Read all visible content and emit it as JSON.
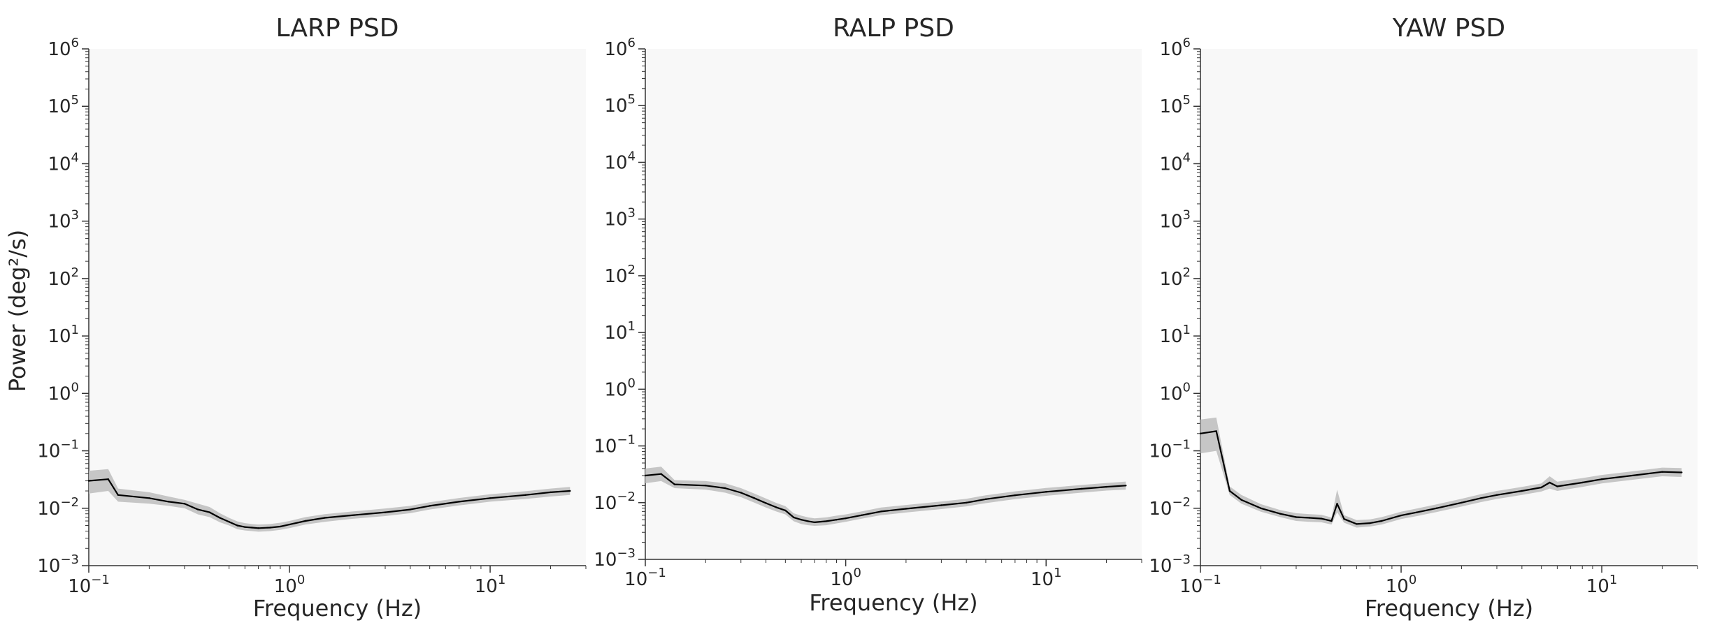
{
  "figure": {
    "shared_ylabel": "Power (deg²/s)"
  },
  "chart_data": [
    {
      "type": "line",
      "title": "LARP PSD",
      "xlabel": "Frequency (Hz)",
      "ylabel": "Power (deg²/s)",
      "xscale": "log",
      "yscale": "log",
      "xlim": [
        0.1,
        30
      ],
      "ylim": [
        0.001,
        1000000
      ],
      "xticks": [
        0.1,
        1,
        10
      ],
      "yticks": [
        0.001,
        0.01,
        0.1,
        1,
        10,
        100,
        1000,
        10000,
        100000,
        1000000
      ],
      "grid": false,
      "series": [
        {
          "style": "mean with shaded band",
          "line_color": "#000000",
          "band_color": "#bdbdbd",
          "x": [
            0.1,
            0.125,
            0.14,
            0.2,
            0.25,
            0.3,
            0.35,
            0.4,
            0.45,
            0.5,
            0.55,
            0.6,
            0.65,
            0.7,
            0.8,
            0.9,
            1.0,
            1.2,
            1.5,
            2.0,
            3.0,
            4.0,
            5.0,
            7.0,
            10.0,
            15.0,
            20.0,
            25.0
          ],
          "y": [
            0.03,
            0.032,
            0.017,
            0.015,
            0.013,
            0.012,
            0.0095,
            0.0085,
            0.0068,
            0.0058,
            0.005,
            0.0047,
            0.0046,
            0.0045,
            0.0046,
            0.0048,
            0.0052,
            0.006,
            0.0068,
            0.0075,
            0.0085,
            0.0095,
            0.011,
            0.013,
            0.015,
            0.017,
            0.019,
            0.02
          ],
          "lower": [
            0.018,
            0.02,
            0.013,
            0.012,
            0.011,
            0.01,
            0.0078,
            0.007,
            0.0057,
            0.005,
            0.0043,
            0.0041,
            0.004,
            0.0039,
            0.004,
            0.0042,
            0.0045,
            0.0052,
            0.0058,
            0.0065,
            0.0073,
            0.0082,
            0.0095,
            0.0112,
            0.013,
            0.0145,
            0.016,
            0.017
          ],
          "upper": [
            0.045,
            0.048,
            0.022,
            0.019,
            0.016,
            0.014,
            0.012,
            0.0105,
            0.0082,
            0.0068,
            0.0059,
            0.0055,
            0.0053,
            0.0052,
            0.0053,
            0.0056,
            0.006,
            0.007,
            0.0079,
            0.0087,
            0.0099,
            0.011,
            0.0127,
            0.0151,
            0.0175,
            0.0198,
            0.022,
            0.0235
          ]
        }
      ]
    },
    {
      "type": "line",
      "title": "RALP PSD",
      "xlabel": "Frequency (Hz)",
      "ylabel": "",
      "xscale": "log",
      "yscale": "log",
      "xlim": [
        0.1,
        30
      ],
      "ylim": [
        0.001,
        1000000
      ],
      "xticks": [
        0.1,
        1,
        10
      ],
      "yticks": [
        0.001,
        0.01,
        0.1,
        1,
        10,
        100,
        1000,
        10000,
        100000,
        1000000
      ],
      "grid": false,
      "series": [
        {
          "style": "mean with shaded band",
          "line_color": "#000000",
          "band_color": "#bdbdbd",
          "x": [
            0.1,
            0.12,
            0.14,
            0.2,
            0.25,
            0.3,
            0.35,
            0.4,
            0.45,
            0.5,
            0.55,
            0.6,
            0.65,
            0.7,
            0.8,
            0.9,
            1.0,
            1.2,
            1.5,
            2.0,
            3.0,
            4.0,
            5.0,
            7.0,
            10.0,
            15.0,
            20.0,
            25.0
          ],
          "y": [
            0.03,
            0.032,
            0.021,
            0.02,
            0.018,
            0.015,
            0.012,
            0.0098,
            0.0083,
            0.0073,
            0.0055,
            0.005,
            0.0047,
            0.0045,
            0.0047,
            0.005,
            0.0053,
            0.006,
            0.007,
            0.0078,
            0.009,
            0.01,
            0.0115,
            0.0135,
            0.0155,
            0.0175,
            0.019,
            0.02
          ],
          "lower": [
            0.022,
            0.024,
            0.018,
            0.017,
            0.015,
            0.0125,
            0.01,
            0.0082,
            0.007,
            0.0062,
            0.0047,
            0.0042,
            0.004,
            0.0039,
            0.004,
            0.0043,
            0.0046,
            0.0052,
            0.006,
            0.0067,
            0.0077,
            0.0086,
            0.0098,
            0.0115,
            0.0132,
            0.015,
            0.0163,
            0.017
          ],
          "upper": [
            0.04,
            0.043,
            0.025,
            0.024,
            0.022,
            0.018,
            0.0145,
            0.0118,
            0.0099,
            0.0087,
            0.0065,
            0.0059,
            0.0055,
            0.0053,
            0.0055,
            0.0059,
            0.0062,
            0.007,
            0.0082,
            0.0091,
            0.0105,
            0.0117,
            0.0135,
            0.0158,
            0.0181,
            0.0205,
            0.0222,
            0.0235
          ]
        }
      ]
    },
    {
      "type": "line",
      "title": "YAW PSD",
      "xlabel": "Frequency (Hz)",
      "ylabel": "",
      "xscale": "log",
      "yscale": "log",
      "xlim": [
        0.1,
        30
      ],
      "ylim": [
        0.001,
        1000000
      ],
      "xticks": [
        0.1,
        1,
        10
      ],
      "yticks": [
        0.001,
        0.01,
        0.1,
        1,
        10,
        100,
        1000,
        10000,
        100000,
        1000000
      ],
      "grid": false,
      "series": [
        {
          "style": "mean with shaded band",
          "line_color": "#000000",
          "band_color": "#bdbdbd",
          "x": [
            0.1,
            0.12,
            0.14,
            0.16,
            0.2,
            0.25,
            0.3,
            0.35,
            0.4,
            0.45,
            0.48,
            0.52,
            0.6,
            0.7,
            0.8,
            1.0,
            1.2,
            1.5,
            2.0,
            2.5,
            3.0,
            4.0,
            5.0,
            5.5,
            6.0,
            8.0,
            10.0,
            15.0,
            20.0,
            25.0
          ],
          "y": [
            0.2,
            0.22,
            0.02,
            0.014,
            0.01,
            0.008,
            0.007,
            0.0068,
            0.0066,
            0.006,
            0.012,
            0.0065,
            0.0053,
            0.0055,
            0.006,
            0.0075,
            0.0085,
            0.01,
            0.0125,
            0.015,
            0.017,
            0.02,
            0.023,
            0.028,
            0.024,
            0.028,
            0.032,
            0.038,
            0.043,
            0.042
          ],
          "lower": [
            0.09,
            0.1,
            0.017,
            0.012,
            0.0087,
            0.007,
            0.006,
            0.0058,
            0.0057,
            0.0052,
            0.0085,
            0.0056,
            0.0046,
            0.0048,
            0.0052,
            0.0065,
            0.0073,
            0.0086,
            0.0107,
            0.0128,
            0.0145,
            0.017,
            0.0195,
            0.022,
            0.02,
            0.0235,
            0.027,
            0.032,
            0.036,
            0.035
          ],
          "upper": [
            0.35,
            0.38,
            0.024,
            0.017,
            0.0118,
            0.0093,
            0.0082,
            0.0079,
            0.0077,
            0.0069,
            0.021,
            0.0076,
            0.0062,
            0.0064,
            0.007,
            0.0087,
            0.0099,
            0.0117,
            0.0146,
            0.0176,
            0.02,
            0.0235,
            0.027,
            0.036,
            0.029,
            0.0335,
            0.038,
            0.045,
            0.051,
            0.05
          ]
        }
      ]
    }
  ]
}
